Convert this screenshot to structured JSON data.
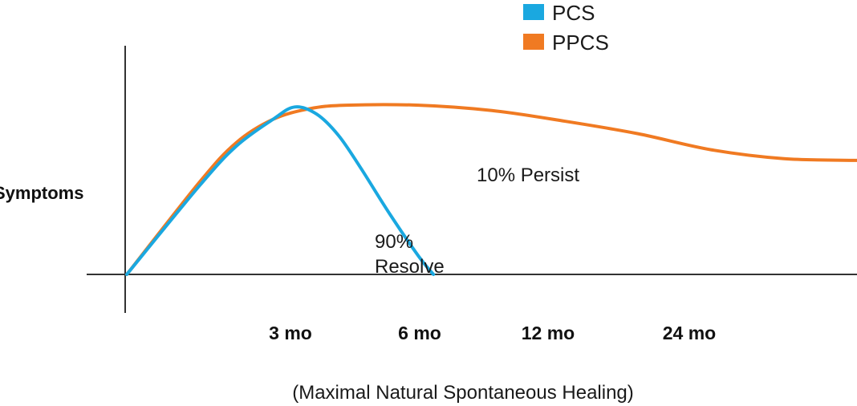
{
  "chart_data": {
    "type": "line",
    "title": "",
    "ylabel": "Symptoms",
    "xlabel": "(Maximal Natural Spontaneous Healing)",
    "x_ticks": [
      "3 mo",
      "6 mo",
      "12 mo",
      "24 mo"
    ],
    "legend": {
      "placement": "top-right"
    },
    "series": [
      {
        "name": "PCS",
        "color": "#1aa8e0",
        "points": [
          [
            0,
            0
          ],
          [
            1.0,
            0.5
          ],
          [
            1.5,
            0.72
          ],
          [
            2.0,
            0.87
          ],
          [
            2.3,
            0.94
          ],
          [
            2.6,
            0.9
          ],
          [
            2.9,
            0.78
          ],
          [
            3.2,
            0.6
          ],
          [
            3.6,
            0.34
          ],
          [
            4.0,
            0.1
          ],
          [
            4.2,
            0
          ]
        ]
      },
      {
        "name": "PPCS",
        "color": "#f07a22",
        "points": [
          [
            0,
            0
          ],
          [
            1.0,
            0.52
          ],
          [
            1.5,
            0.74
          ],
          [
            2.0,
            0.87
          ],
          [
            2.5,
            0.93
          ],
          [
            3.0,
            0.95
          ],
          [
            4.0,
            0.95
          ],
          [
            5.0,
            0.92
          ],
          [
            6.0,
            0.86
          ],
          [
            7.0,
            0.79
          ],
          [
            8.0,
            0.7
          ],
          [
            9.0,
            0.65
          ],
          [
            10.0,
            0.64
          ]
        ]
      }
    ],
    "annotations": [
      {
        "text": "10% Persist",
        "series": "PPCS"
      },
      {
        "text": "90%",
        "series": "PCS"
      },
      {
        "text": "Resolve",
        "series": "PCS"
      }
    ],
    "x_range": [
      0,
      10
    ],
    "y_range": [
      0,
      1
    ],
    "grid": false
  }
}
